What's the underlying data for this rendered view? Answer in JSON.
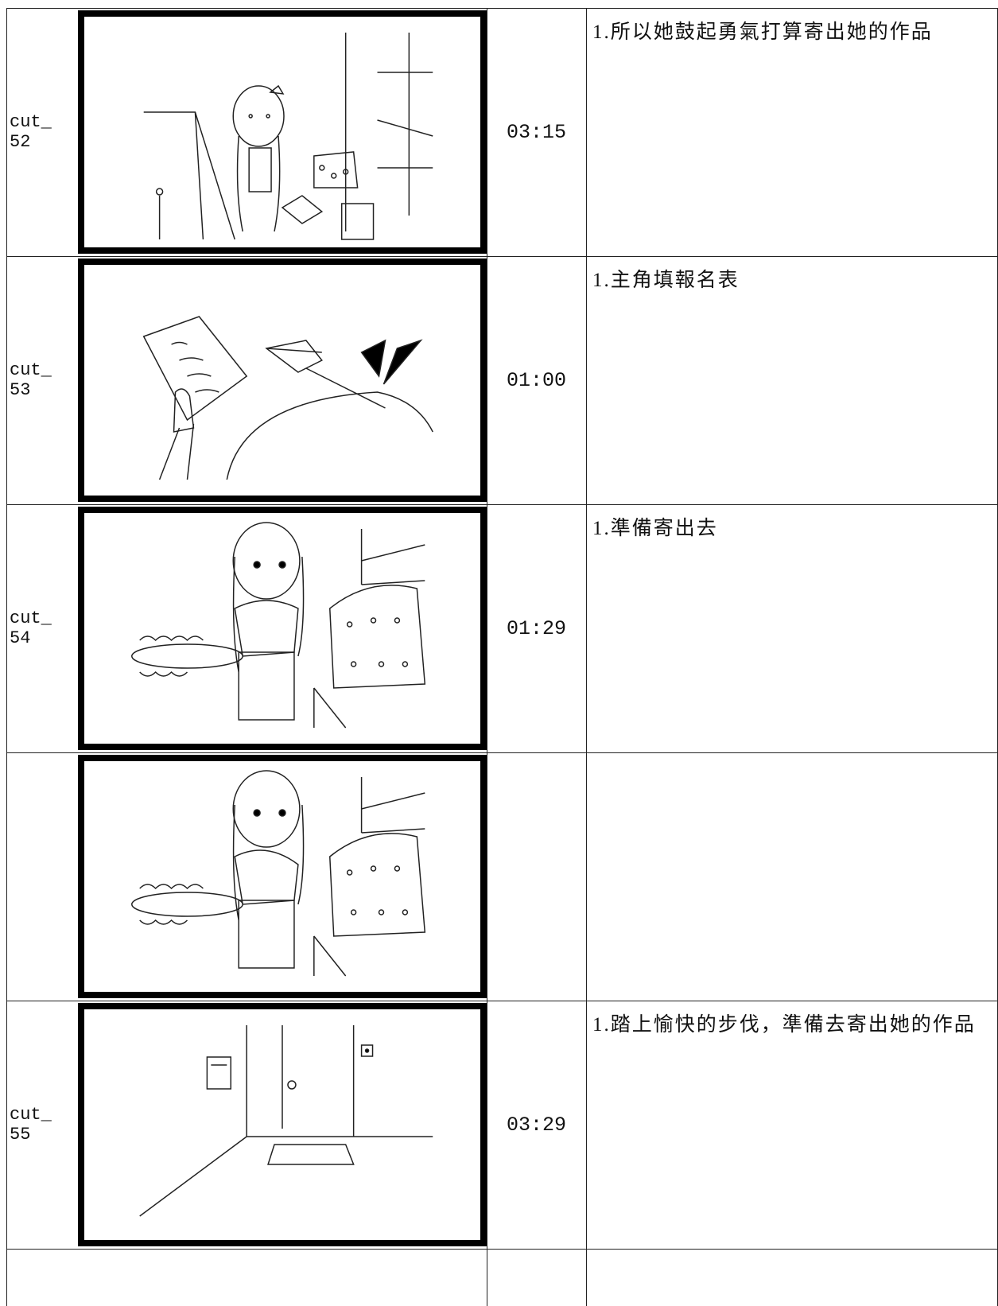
{
  "storyboard": {
    "rows": [
      {
        "cut": "cut_ 52",
        "time": "03:15",
        "description": "1.所以她鼓起勇氣打算寄出她的作品"
      },
      {
        "cut": "cut_ 53",
        "time": "01:00",
        "description": "1.主角填報名表"
      },
      {
        "cut": "cut_ 54",
        "time": "01:29",
        "description": "1.準備寄出去"
      },
      {},
      {
        "cut": "cut_ 55",
        "time": "03:29",
        "description": "1.踏上愉快的步伐，準備去寄出她的作品"
      }
    ]
  }
}
